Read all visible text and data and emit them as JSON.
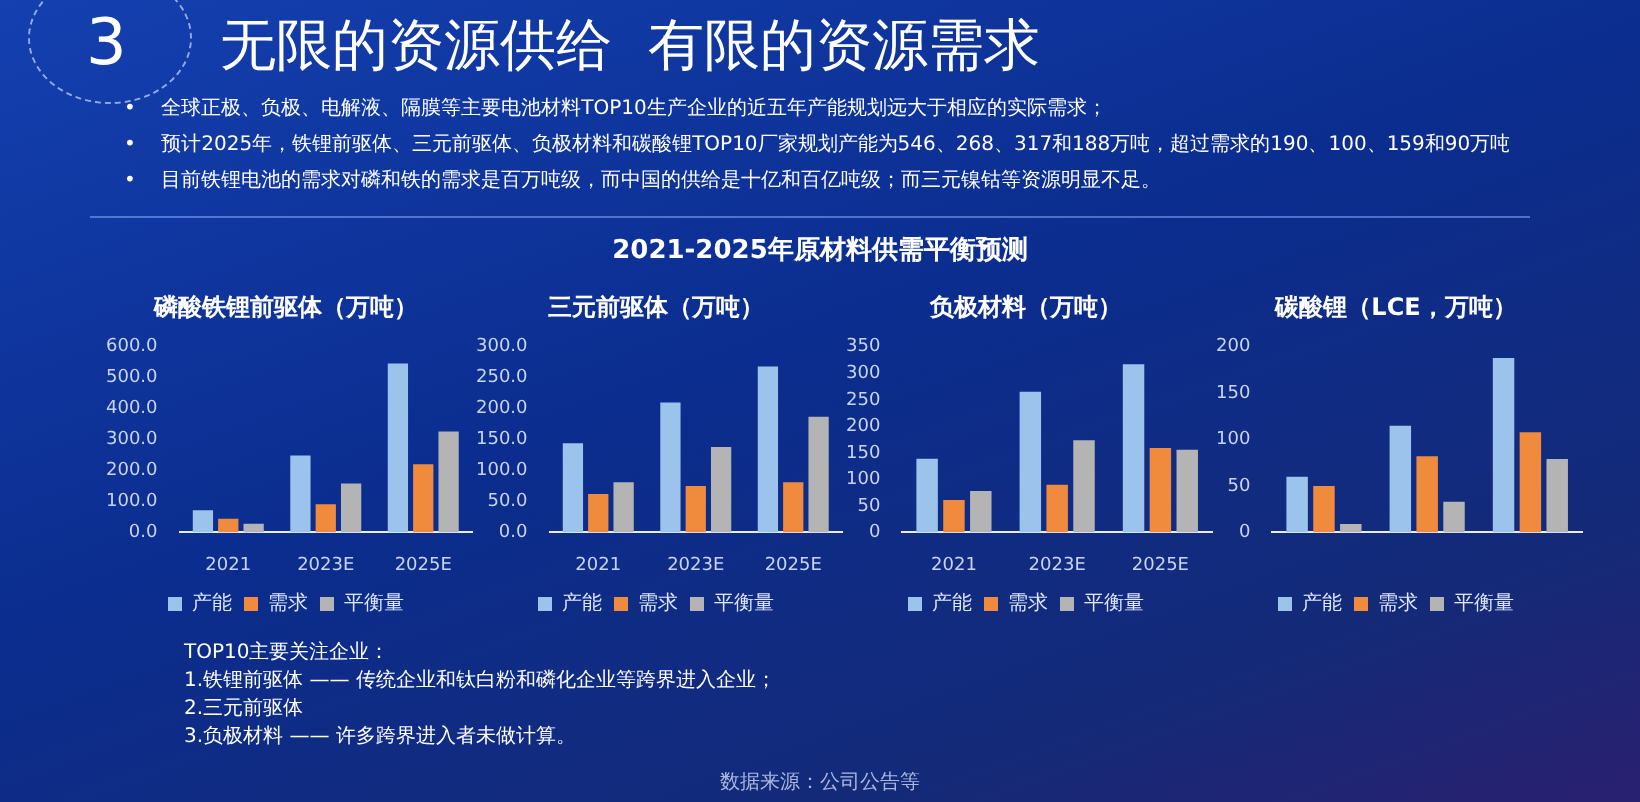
{
  "chart_data": [
    {
      "type": "other",
      "title": "无限的资源供给  有限的资源需求",
      "subtitle": "2021-2025年原材料供需平衡预测",
      "annotations": [
        "3",
        "•    全球正极、负极、电解液、隔膜等主要电池材料TOP10生产企业的近五年产能规划远大于相应的实际需求；",
        "•    预计2025年，铁锂前驱体、三元前驱体、负极材料和碳酸锂TOP10厂家规划产能为546、268、317和188万吨，超过需求的190、100、159和90万吨",
        "•    目前铁锂电池的需求对磷和铁的需求是百万吨级，而中国的供给是十亿和百亿吨级；而三元镍钴等资源明显不足。"
      ]
    },
    {
      "type": "bar",
      "title": "磷酸铁锂前驱体（万吨）",
      "categories": [
        "2021",
        "2023E",
        "2025E"
      ],
      "ylim": [
        0,
        600
      ],
      "yticks": [
        {
          "value": 0,
          "label": "0.0"
        },
        {
          "value": 100,
          "label": "100.0"
        },
        {
          "value": 200,
          "label": "200.0"
        },
        {
          "value": 300,
          "label": "300.0"
        },
        {
          "value": 400,
          "label": "400.0"
        },
        {
          "value": 500,
          "label": "500.0"
        },
        {
          "value": 600,
          "label": "600.0"
        }
      ],
      "legend": "bottom",
      "series": [
        {
          "name": "产能",
          "color": "#9cc3ec",
          "values": [
            72,
            249,
            546
          ]
        },
        {
          "name": "需求",
          "color": "#f08a3c",
          "values": [
            44,
            91,
            220
          ]
        },
        {
          "name": "平衡量",
          "color": "#b4b4b4",
          "values": [
            28,
            158,
            326
          ]
        }
      ]
    },
    {
      "type": "bar",
      "title": "三元前驱体（万吨）",
      "categories": [
        "2021",
        "2023E",
        "2025E"
      ],
      "ylim": [
        0,
        300
      ],
      "yticks": [
        {
          "value": 0,
          "label": "0.0"
        },
        {
          "value": 50,
          "label": "50.0"
        },
        {
          "value": 100,
          "label": "100.0"
        },
        {
          "value": 150,
          "label": "150.0"
        },
        {
          "value": 200,
          "label": "200.0"
        },
        {
          "value": 250,
          "label": "250.0"
        },
        {
          "value": 300,
          "label": "300.0"
        }
      ],
      "legend": "bottom",
      "series": [
        {
          "name": "产能",
          "color": "#9cc3ec",
          "values": [
            144,
            210,
            268
          ]
        },
        {
          "name": "需求",
          "color": "#f08a3c",
          "values": [
            62,
            75,
            81
          ]
        },
        {
          "name": "平衡量",
          "color": "#b4b4b4",
          "values": [
            81,
            138,
            187
          ]
        }
      ]
    },
    {
      "type": "bar",
      "title": "负极材料（万吨）",
      "categories": [
        "2021",
        "2023E",
        "2025E"
      ],
      "ylim": [
        0,
        350
      ],
      "yticks": [
        0,
        50,
        100,
        150,
        200,
        250,
        300,
        350
      ],
      "legend": "bottom",
      "series": [
        {
          "name": "产能",
          "color": "#9cc3ec",
          "values": [
            139,
            265,
            317
          ]
        },
        {
          "name": "需求",
          "color": "#f08a3c",
          "values": [
            61,
            90,
            159
          ]
        },
        {
          "name": "平衡量",
          "color": "#b4b4b4",
          "values": [
            78,
            174,
            156
          ]
        }
      ]
    },
    {
      "type": "bar",
      "title": "碳酸锂（LCE，万吨）",
      "categories": [
        null,
        null,
        null
      ],
      "ylim": [
        0,
        200
      ],
      "yticks": [
        0,
        50,
        100,
        150,
        200
      ],
      "legend": "bottom",
      "series": [
        {
          "name": "产能",
          "color": "#9cc3ec",
          "values": [
            60,
            115,
            188
          ]
        },
        {
          "name": "需求",
          "color": "#f08a3c",
          "values": [
            50,
            82,
            108
          ]
        },
        {
          "name": "平衡量",
          "color": "#b4b4b4",
          "values": [
            9,
            33,
            79
          ]
        }
      ]
    },
    {
      "type": "other",
      "annotations": [
        "TOP10主要关注企业：",
        "1.铁锂前驱体 —— 传统企业和钛白粉和磷化企业等跨界进入企业；",
        "2.三元前驱体",
        "3.负极材料 —— 许多跨界进入者未做计算。",
        "数据来源：公司公告等"
      ]
    }
  ]
}
